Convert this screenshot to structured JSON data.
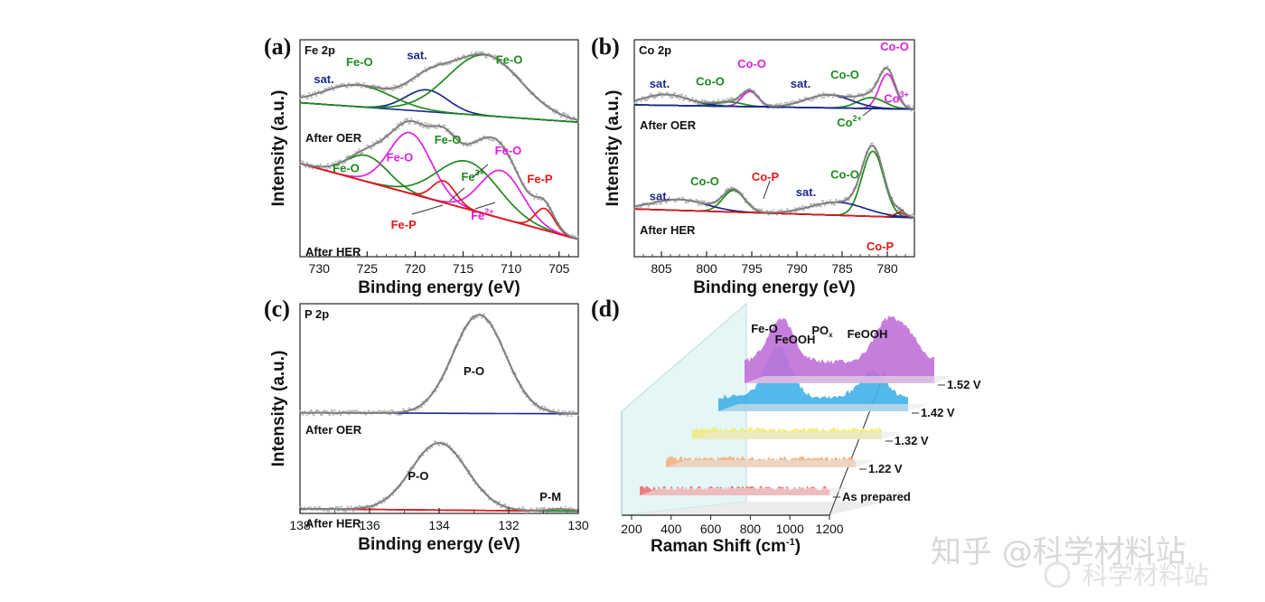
{
  "figure": {
    "panel_labels": [
      "(a)",
      "(b)",
      "(c)",
      "(d)"
    ],
    "watermark": "知乎 @科学材料站",
    "watermark2": "科学材料站"
  },
  "chart_data": [
    {
      "type": "line",
      "panel": "(a)",
      "title": "Fe 2p",
      "xlabel": "Binding energy (eV)",
      "ylabel": "Intensity (a.u.)",
      "xlim": [
        732,
        703
      ],
      "xticks": [
        730,
        725,
        720,
        715,
        710,
        705
      ],
      "conditions": [
        "After OER",
        "After HER"
      ],
      "colors": {
        "raw": "#9a9a9a",
        "envelope": "#808080",
        "background": "#1a2a8a",
        "fe_o": "#1e8a1e",
        "sat": "#1a2a8a",
        "fe3": "#1e8a1e",
        "fe2": "#e020e0",
        "fe_p": "#e01818"
      },
      "series": [
        {
          "name": "After OER",
          "offset": 0.62,
          "background": [
            [
              732,
              0.09
            ],
            [
              703,
              0.0
            ]
          ],
          "peaks": [
            {
              "label": "sat.",
              "center": 718.8,
              "width": 2.2,
              "height": 0.1,
              "color": "#1a2a8a"
            },
            {
              "label": "Fe-O",
              "center": 712.8,
              "width": 3.8,
              "height": 0.28,
              "color": "#1e8a1e"
            },
            {
              "label": "Fe-O",
              "center": 726.0,
              "width": 3.5,
              "height": 0.1,
              "color": "#1e8a1e"
            }
          ]
        },
        {
          "name": "After HER",
          "offset": 0.08,
          "background": [
            [
              732,
              0.35
            ],
            [
              703,
              0.0
            ]
          ],
          "peaks": [
            {
              "label": "Fe-O",
              "center": 725.0,
              "width": 2.2,
              "height": 0.12,
              "color": "#1e8a1e"
            },
            {
              "label": "Fe-O",
              "center": 720.5,
              "width": 2.2,
              "height": 0.28,
              "color": "#e020e0"
            },
            {
              "label": "Fe3+",
              "center": 714.5,
              "width": 3.2,
              "height": 0.22,
              "color": "#1e8a1e"
            },
            {
              "label": "Fe2+",
              "center": 711.0,
              "width": 2.2,
              "height": 0.22,
              "color": "#e020e0"
            },
            {
              "label": "Fe-P",
              "center": 717.0,
              "width": 1.2,
              "height": 0.1,
              "color": "#e01818"
            },
            {
              "label": "Fe-P",
              "center": 706.5,
              "width": 1.0,
              "height": 0.1,
              "color": "#e01818"
            }
          ]
        }
      ],
      "annotations": [
        {
          "text": "sat.",
          "x": 729.5,
          "y": 0.8,
          "color": "#1a2a8a"
        },
        {
          "text": "Fe-O",
          "x": 725.8,
          "y": 0.88,
          "color": "#1e8a1e"
        },
        {
          "text": "sat.",
          "x": 719.8,
          "y": 0.91,
          "color": "#1a2a8a"
        },
        {
          "text": "Fe-O",
          "x": 710.2,
          "y": 0.89,
          "color": "#1e8a1e"
        },
        {
          "text": "Fe-O",
          "x": 727.2,
          "y": 0.39,
          "color": "#1e8a1e"
        },
        {
          "text": "Fe-O",
          "x": 721.6,
          "y": 0.44,
          "color": "#e020e0"
        },
        {
          "text": "Fe-O",
          "x": 716.6,
          "y": 0.52,
          "color": "#1e8a1e"
        },
        {
          "text": "Fe-O",
          "x": 710.3,
          "y": 0.47,
          "color": "#e020e0"
        },
        {
          "text": "Fe-P",
          "x": 707.0,
          "y": 0.34,
          "color": "#e01818"
        },
        {
          "text": "Fe-P",
          "x": 721.2,
          "y": 0.13,
          "color": "#e01818"
        }
      ],
      "charge_labels": [
        {
          "base": "Fe",
          "sup": "3+",
          "x": 714.0,
          "y": 0.35,
          "color": "#1e8a1e"
        },
        {
          "base": "Fe",
          "sup": "2+",
          "x": 713.0,
          "y": 0.17,
          "color": "#e020e0"
        }
      ]
    },
    {
      "type": "line",
      "panel": "(b)",
      "title": "Co 2p",
      "xlabel": "Binding energy (eV)",
      "ylabel": "Intensity (a.u.)",
      "xlim": [
        808,
        777
      ],
      "xticks": [
        805,
        800,
        795,
        790,
        785,
        780
      ],
      "conditions": [
        "After OER",
        "After HER"
      ],
      "series": [
        {
          "name": "After OER",
          "offset": 0.68,
          "background": [
            [
              808,
              0.02
            ],
            [
              777,
              0.0
            ]
          ],
          "peaks": [
            {
              "label": "Co-O",
              "center": 780.0,
              "width": 0.9,
              "height": 0.16,
              "color": "#e020e0"
            },
            {
              "label": "Co-O",
              "center": 795.2,
              "width": 0.9,
              "height": 0.07,
              "color": "#e020e0"
            },
            {
              "label": "Co2+",
              "center": 781.8,
              "width": 1.5,
              "height": 0.05,
              "color": "#1e8a1e"
            },
            {
              "label": "Co-O",
              "center": 797.5,
              "width": 1.5,
              "height": 0.02,
              "color": "#1e8a1e"
            },
            {
              "label": "sat.",
              "center": 786.5,
              "width": 2.5,
              "height": 0.06,
              "color": "#1a2a8a"
            },
            {
              "label": "sat.",
              "center": 804.5,
              "width": 2.5,
              "height": 0.05,
              "color": "#1a2a8a"
            }
          ]
        },
        {
          "name": "After HER",
          "offset": 0.18,
          "background": [
            [
              808,
              0.04
            ],
            [
              777,
              0.0
            ]
          ],
          "peaks": [
            {
              "label": "Co-O",
              "center": 781.6,
              "width": 1.2,
              "height": 0.3,
              "color": "#1e8a1e"
            },
            {
              "label": "Co-O",
              "center": 797.0,
              "width": 1.2,
              "height": 0.1,
              "color": "#1e8a1e"
            },
            {
              "label": "sat.",
              "center": 785.5,
              "width": 3.0,
              "height": 0.06,
              "color": "#1a2a8a"
            },
            {
              "label": "sat.",
              "center": 803.0,
              "width": 3.0,
              "height": 0.05,
              "color": "#1a2a8a"
            },
            {
              "label": "Co-P",
              "center": 778.6,
              "width": 0.6,
              "height": 0.02,
              "color": "#e01818"
            }
          ]
        }
      ],
      "annotations": [
        {
          "text": "Co-O",
          "x": 779.2,
          "y": 0.95,
          "color": "#e020e0"
        },
        {
          "text": "Co-O",
          "x": 795.0,
          "y": 0.87,
          "color": "#e020e0"
        },
        {
          "text": "Co-O",
          "x": 799.6,
          "y": 0.79,
          "color": "#1e8a1e"
        },
        {
          "text": "Co-O",
          "x": 784.7,
          "y": 0.82,
          "color": "#1e8a1e"
        },
        {
          "text": "sat.",
          "x": 805.2,
          "y": 0.78,
          "color": "#1a2a8a"
        },
        {
          "text": "sat.",
          "x": 789.6,
          "y": 0.78,
          "color": "#1a2a8a"
        },
        {
          "text": "Co-O",
          "x": 800.2,
          "y": 0.33,
          "color": "#1e8a1e"
        },
        {
          "text": "Co-O",
          "x": 784.7,
          "y": 0.36,
          "color": "#1e8a1e"
        },
        {
          "text": "Co-P",
          "x": 793.5,
          "y": 0.35,
          "color": "#e01818"
        },
        {
          "text": "sat.",
          "x": 805.2,
          "y": 0.26,
          "color": "#1a2a8a"
        },
        {
          "text": "sat.",
          "x": 789.0,
          "y": 0.28,
          "color": "#1a2a8a"
        },
        {
          "text": "Co-P",
          "x": 780.8,
          "y": 0.03,
          "color": "#e01818"
        }
      ],
      "charge_labels": [
        {
          "base": "Co",
          "sup": "3+",
          "x": 779.0,
          "y": 0.71,
          "color": "#e020e0"
        },
        {
          "base": "Co",
          "sup": "2+",
          "x": 784.2,
          "y": 0.6,
          "color": "#1e8a1e"
        }
      ]
    },
    {
      "type": "line",
      "panel": "(c)",
      "title": "P 2p",
      "xlabel": "Binding energy (eV)",
      "ylabel": "Intensity (a.u.)",
      "xlim": [
        138,
        130
      ],
      "xticks": [
        138,
        136,
        134,
        132,
        130
      ],
      "conditions": [
        "After OER",
        "After HER"
      ],
      "series": [
        {
          "name": "After OER",
          "offset": 0.475,
          "background": [
            [
              138,
              0.005
            ],
            [
              130,
              0.0
            ]
          ],
          "peaks": [
            {
              "label": "P-O",
              "center": 132.85,
              "width": 0.75,
              "height": 0.47,
              "color": "#808080"
            }
          ]
        },
        {
          "name": "After HER",
          "offset": 0.01,
          "background": [
            [
              138,
              0.012
            ],
            [
              130,
              0.0
            ]
          ],
          "peaks": [
            {
              "label": "P-O",
              "center": 134.0,
              "width": 0.8,
              "height": 0.32,
              "color": "#1e8a1e"
            },
            {
              "label": "P-M",
              "center": 130.5,
              "width": 0.35,
              "height": 0.01,
              "color": "#e01818"
            }
          ]
        }
      ],
      "annotations": [
        {
          "text": "P-O",
          "x": 133.0,
          "y": 0.66,
          "color": "#111111"
        },
        {
          "text": "P-O",
          "x": 134.6,
          "y": 0.16,
          "color": "#111111"
        },
        {
          "text": "P-M",
          "x": 130.8,
          "y": 0.06,
          "color": "#111111"
        }
      ]
    },
    {
      "type": "line",
      "panel": "(d)",
      "title": "",
      "xlabel": "Raman Shift (cm⁻¹)",
      "xlabel_main": "Raman Shift (cm",
      "xlabel_sup": "-1",
      "xlabel_end": ")",
      "xlim": [
        150,
        1200
      ],
      "xticks": [
        200,
        400,
        600,
        800,
        1000,
        1200
      ],
      "extra_tick_labels": [
        "1000",
        "1200"
      ],
      "series": [
        {
          "name": "As prepared",
          "color": "#f07070",
          "baseline": 0.1
        },
        {
          "name": "1.22 V",
          "color": "#f5b080",
          "baseline": 0.12
        },
        {
          "name": "1.32 V",
          "color": "#f0ec80",
          "baseline": 0.14
        },
        {
          "name": "1.42 V",
          "color": "#40b0e8",
          "baseline": 0.2,
          "peaks": [
            {
              "center": 480,
              "height": 0.7
            },
            {
              "center": 1000,
              "height": 0.35
            }
          ]
        },
        {
          "name": "1.52 V",
          "color": "#c070d8",
          "baseline": 0.3,
          "peaks": [
            {
              "center": 350,
              "height": 0.6
            },
            {
              "center": 930,
              "height": 0.5
            },
            {
              "center": 1050,
              "height": 0.35
            }
          ]
        }
      ],
      "band_labels": [
        {
          "text": "Fe-O",
          "x": 350
        },
        {
          "text": "FeOOH",
          "x": 480
        },
        {
          "text": "PO",
          "sub": "x",
          "x": 930
        },
        {
          "text": "FeOOH",
          "x": 1060
        }
      ]
    }
  ]
}
